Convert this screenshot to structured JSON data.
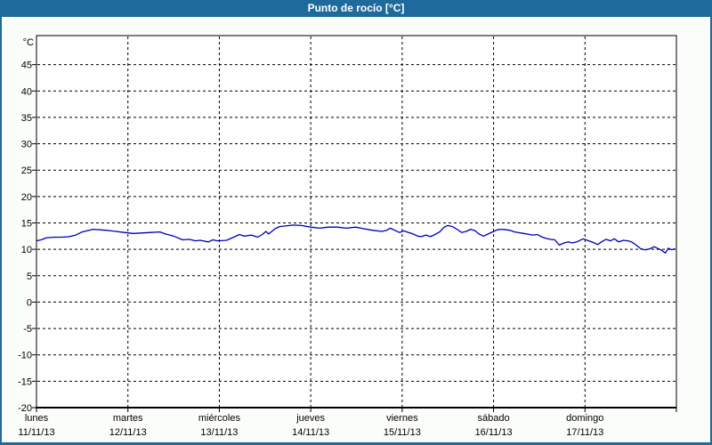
{
  "title_bar": {
    "title": "Punto de rocío [°C]"
  },
  "colors": {
    "titlebar_bg": "#1e6a9c",
    "frame_border": "#1e6a9c",
    "background": "#fbfdfa",
    "plot_background": "#fefefe",
    "plot_border": "#000000",
    "grid": "#000000",
    "line": "#0000b4",
    "title_text": "#ffffff",
    "label_text": "#000000"
  },
  "chart_data": {
    "type": "line",
    "title": "Punto de rocío [°C]",
    "y_unit_label": "°C",
    "ylim": [
      -20,
      50.5
    ],
    "yticks": [
      45,
      40,
      35,
      30,
      25,
      20,
      15,
      10,
      5,
      0,
      -5,
      -10,
      -15,
      -20
    ],
    "grid": "dashed",
    "legend_position": "none",
    "x_categories": [
      {
        "day": "lunes",
        "date": "11/11/13"
      },
      {
        "day": "martes",
        "date": "12/11/13"
      },
      {
        "day": "miércoles",
        "date": "13/11/13"
      },
      {
        "day": "jueves",
        "date": "14/11/13"
      },
      {
        "day": "viernes",
        "date": "15/11/13"
      },
      {
        "day": "sábado",
        "date": "16/11/13"
      },
      {
        "day": "domingo",
        "date": "17/11/13"
      }
    ],
    "x_is_day_fraction": true,
    "series": [
      {
        "name": "Punto de rocío",
        "color": "#0000b4",
        "points": [
          [
            0.0,
            11.6
          ],
          [
            0.05,
            11.8
          ],
          [
            0.11,
            12.2
          ],
          [
            0.2,
            12.3
          ],
          [
            0.28,
            12.3
          ],
          [
            0.36,
            12.4
          ],
          [
            0.43,
            12.7
          ],
          [
            0.5,
            13.3
          ],
          [
            0.62,
            13.8
          ],
          [
            0.77,
            13.6
          ],
          [
            0.96,
            13.2
          ],
          [
            1.06,
            13.0
          ],
          [
            1.25,
            13.2
          ],
          [
            1.35,
            13.3
          ],
          [
            1.41,
            12.9
          ],
          [
            1.5,
            12.5
          ],
          [
            1.6,
            11.8
          ],
          [
            1.67,
            11.9
          ],
          [
            1.74,
            11.6
          ],
          [
            1.79,
            11.7
          ],
          [
            1.88,
            11.4
          ],
          [
            1.93,
            11.8
          ],
          [
            1.98,
            11.6
          ],
          [
            2.08,
            11.7
          ],
          [
            2.17,
            12.4
          ],
          [
            2.22,
            12.8
          ],
          [
            2.27,
            12.5
          ],
          [
            2.35,
            12.7
          ],
          [
            2.42,
            12.3
          ],
          [
            2.47,
            12.8
          ],
          [
            2.51,
            13.4
          ],
          [
            2.54,
            12.9
          ],
          [
            2.61,
            13.9
          ],
          [
            2.66,
            14.3
          ],
          [
            2.71,
            14.4
          ],
          [
            2.81,
            14.6
          ],
          [
            2.9,
            14.5
          ],
          [
            3.0,
            14.2
          ],
          [
            3.1,
            14.0
          ],
          [
            3.19,
            14.2
          ],
          [
            3.29,
            14.2
          ],
          [
            3.39,
            14.0
          ],
          [
            3.49,
            14.2
          ],
          [
            3.58,
            13.9
          ],
          [
            3.68,
            13.6
          ],
          [
            3.78,
            13.4
          ],
          [
            3.83,
            13.6
          ],
          [
            3.87,
            14.0
          ],
          [
            3.92,
            13.6
          ],
          [
            3.97,
            13.2
          ],
          [
            4.02,
            13.5
          ],
          [
            4.07,
            13.2
          ],
          [
            4.12,
            12.9
          ],
          [
            4.17,
            12.5
          ],
          [
            4.21,
            12.4
          ],
          [
            4.26,
            12.7
          ],
          [
            4.31,
            12.4
          ],
          [
            4.36,
            12.8
          ],
          [
            4.41,
            13.3
          ],
          [
            4.46,
            14.2
          ],
          [
            4.5,
            14.5
          ],
          [
            4.55,
            14.3
          ],
          [
            4.6,
            13.8
          ],
          [
            4.65,
            13.2
          ],
          [
            4.7,
            13.4
          ],
          [
            4.75,
            13.8
          ],
          [
            4.8,
            13.5
          ],
          [
            4.84,
            12.9
          ],
          [
            4.89,
            12.5
          ],
          [
            4.94,
            12.9
          ],
          [
            4.99,
            13.3
          ],
          [
            5.04,
            13.7
          ],
          [
            5.09,
            13.8
          ],
          [
            5.14,
            13.7
          ],
          [
            5.18,
            13.6
          ],
          [
            5.23,
            13.3
          ],
          [
            5.33,
            13.0
          ],
          [
            5.43,
            12.7
          ],
          [
            5.48,
            12.8
          ],
          [
            5.52,
            12.4
          ],
          [
            5.57,
            12.1
          ],
          [
            5.62,
            11.9
          ],
          [
            5.67,
            11.8
          ],
          [
            5.72,
            10.8
          ],
          [
            5.77,
            11.2
          ],
          [
            5.82,
            11.4
          ],
          [
            5.86,
            11.2
          ],
          [
            5.91,
            11.4
          ],
          [
            5.98,
            12.0
          ],
          [
            6.04,
            11.6
          ],
          [
            6.09,
            11.3
          ],
          [
            6.14,
            10.9
          ],
          [
            6.18,
            11.4
          ],
          [
            6.23,
            11.9
          ],
          [
            6.28,
            11.6
          ],
          [
            6.32,
            12.0
          ],
          [
            6.37,
            11.4
          ],
          [
            6.42,
            11.7
          ],
          [
            6.47,
            11.6
          ],
          [
            6.51,
            11.4
          ],
          [
            6.56,
            10.8
          ],
          [
            6.61,
            10.1
          ],
          [
            6.66,
            9.9
          ],
          [
            6.71,
            10.1
          ],
          [
            6.76,
            10.5
          ],
          [
            6.79,
            10.2
          ],
          [
            6.83,
            9.9
          ],
          [
            6.88,
            9.3
          ],
          [
            6.91,
            10.2
          ],
          [
            6.95,
            9.9
          ],
          [
            6.98,
            10.1
          ]
        ]
      }
    ]
  }
}
